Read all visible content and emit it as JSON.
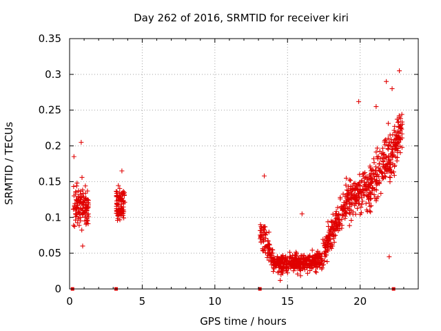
{
  "chart_data": {
    "type": "scatter",
    "title": "Day 262 of 2016, SRMTID for receiver kiri",
    "xlabel": "GPS time / hours",
    "ylabel": "SRMTID / TECUs",
    "xlim": [
      0,
      24
    ],
    "ylim": [
      0,
      0.35
    ],
    "grid": true,
    "marker": "plus",
    "color": "#e00000",
    "x_ticks": [
      {
        "value": 0,
        "label": "0"
      },
      {
        "value": 5,
        "label": "5"
      },
      {
        "value": 10,
        "label": "10"
      },
      {
        "value": 15,
        "label": "15"
      },
      {
        "value": 20,
        "label": "20"
      }
    ],
    "y_ticks": [
      {
        "value": 0,
        "label": "0"
      },
      {
        "value": 0.05,
        "label": "0.05"
      },
      {
        "value": 0.1,
        "label": "0.1"
      },
      {
        "value": 0.15,
        "label": "0.15"
      },
      {
        "value": 0.2,
        "label": "0.2"
      },
      {
        "value": 0.25,
        "label": "0.25"
      },
      {
        "value": 0.3,
        "label": "0.3"
      },
      {
        "value": 0.35,
        "label": "0.35"
      }
    ],
    "gap_markers": [
      {
        "x": 0.2,
        "y": 0
      },
      {
        "x": 3.2,
        "y": 0
      },
      {
        "x": 13.1,
        "y": 0
      },
      {
        "x": 22.3,
        "y": 0
      }
    ],
    "clusters": [
      {
        "x_start": 0.2,
        "x_end": 1.3,
        "count": 130,
        "y_at_start": 0.12,
        "y_at_end": 0.11,
        "spread": 0.03,
        "y_min": 0.06,
        "y_max": 0.21,
        "seed": 11
      },
      {
        "x_start": 3.2,
        "x_end": 3.8,
        "count": 90,
        "y_at_start": 0.12,
        "y_at_end": 0.12,
        "spread": 0.028,
        "y_min": 0.07,
        "y_max": 0.17,
        "seed": 23
      },
      {
        "x_start": 13.1,
        "x_end": 14.0,
        "count": 80,
        "y_at_start": 0.08,
        "y_at_end": 0.045,
        "spread": 0.02,
        "y_min": 0.01,
        "y_max": 0.16,
        "seed": 37
      },
      {
        "x_start": 14.0,
        "x_end": 17.4,
        "count": 380,
        "y_at_start": 0.035,
        "y_at_end": 0.038,
        "spread": 0.013,
        "y_min": 0.008,
        "y_max": 0.11,
        "seed": 41
      },
      {
        "x_start": 17.4,
        "x_end": 19.0,
        "count": 150,
        "y_at_start": 0.05,
        "y_at_end": 0.12,
        "spread": 0.022,
        "y_min": 0.03,
        "y_max": 0.21,
        "seed": 53
      },
      {
        "x_start": 19.0,
        "x_end": 20.6,
        "count": 160,
        "y_at_start": 0.12,
        "y_at_end": 0.14,
        "spread": 0.03,
        "y_min": 0.07,
        "y_max": 0.26,
        "seed": 61
      },
      {
        "x_start": 20.6,
        "x_end": 22.0,
        "count": 140,
        "y_at_start": 0.14,
        "y_at_end": 0.19,
        "spread": 0.035,
        "y_min": 0.07,
        "y_max": 0.29,
        "seed": 67
      },
      {
        "x_start": 22.0,
        "x_end": 22.9,
        "count": 110,
        "y_at_start": 0.18,
        "y_at_end": 0.22,
        "spread": 0.035,
        "y_min": 0.12,
        "y_max": 0.305,
        "seed": 71
      }
    ],
    "notable_points": [
      {
        "x": 0.8,
        "y": 0.205
      },
      {
        "x": 0.3,
        "y": 0.185
      },
      {
        "x": 0.9,
        "y": 0.06
      },
      {
        "x": 3.6,
        "y": 0.165
      },
      {
        "x": 13.4,
        "y": 0.158
      },
      {
        "x": 19.9,
        "y": 0.262
      },
      {
        "x": 21.8,
        "y": 0.29
      },
      {
        "x": 22.2,
        "y": 0.28
      },
      {
        "x": 22.7,
        "y": 0.305
      },
      {
        "x": 22.0,
        "y": 0.045
      },
      {
        "x": 14.5,
        "y": 0.012
      },
      {
        "x": 16.0,
        "y": 0.105
      },
      {
        "x": 21.1,
        "y": 0.255
      }
    ]
  }
}
